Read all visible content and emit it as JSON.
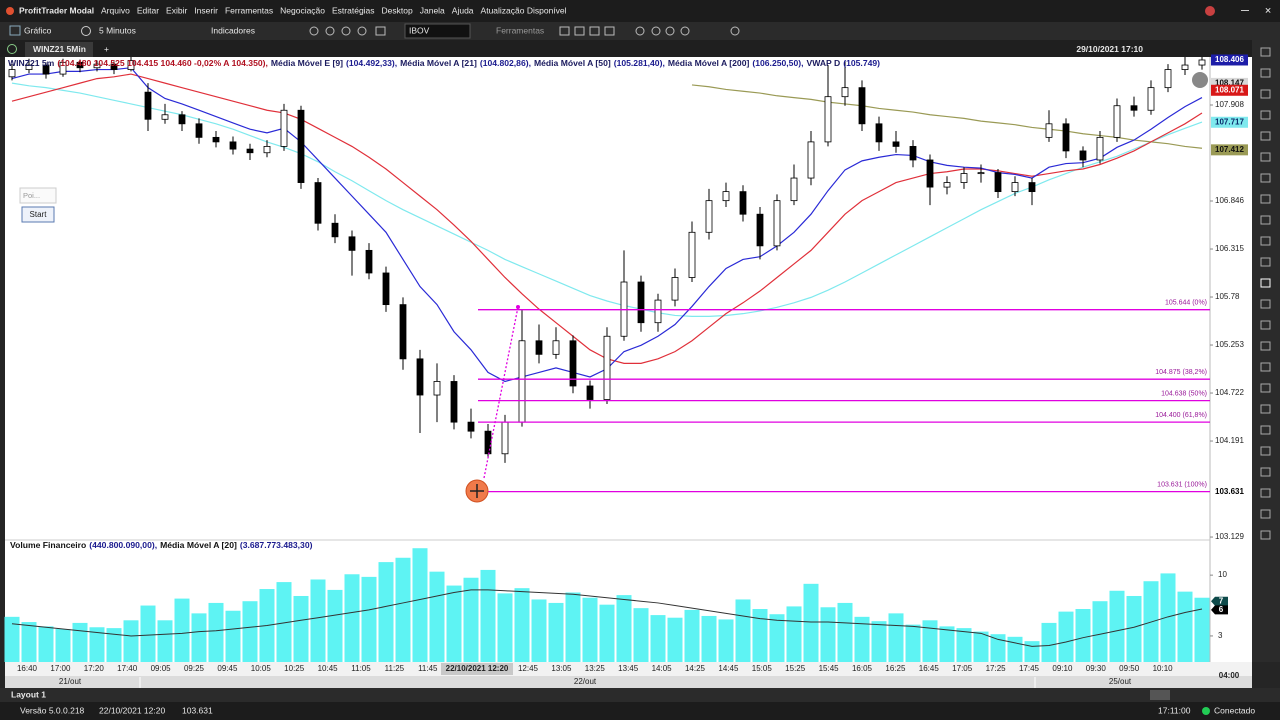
{
  "app": {
    "title": "ProfitTrader Modal",
    "menu": [
      "Arquivo",
      "Editar",
      "Exibir",
      "Inserir",
      "Ferramentas",
      "Negociação",
      "Estratégias",
      "Desktop",
      "Janela",
      "Ajuda",
      "Atualização Disponível"
    ],
    "toolbar": {
      "chart": "Gráfico",
      "timeframe": "5 Minutos",
      "indicators": "Indicadores",
      "symbol": "IBOV",
      "tools": "Ferramentas"
    },
    "tab": "WINZ21 5Min",
    "datetime": "29/10/2021 17:10",
    "side_panel": {
      "input": "Poi...",
      "button": "Start"
    },
    "layout_tab": "Layout 1",
    "status": {
      "version": "Versão 5.0.0.218",
      "datetime": "22/10/2021 12:20",
      "price": "103.631",
      "time": "17:11:00",
      "connection": "Conectado"
    }
  },
  "chart_data": [
    {
      "type": "candlestick",
      "symbol": "WINZ21 5m",
      "symbol_quote": "(104.480 104.525 104.415 104.460 -0,02% A 104.350),",
      "up_color": "#ffffff",
      "down_color": "#000000",
      "candles": [
        [
          108.22,
          108.36,
          108.18,
          108.3
        ],
        [
          108.3,
          108.42,
          108.26,
          108.35
        ],
        [
          108.35,
          108.38,
          108.2,
          108.25
        ],
        [
          108.25,
          108.42,
          108.22,
          108.38
        ],
        [
          108.38,
          108.41,
          108.27,
          108.32
        ],
        [
          108.32,
          108.4,
          108.28,
          108.36
        ],
        [
          108.36,
          108.39,
          108.25,
          108.3
        ],
        [
          108.3,
          108.44,
          108.28,
          108.4
        ],
        [
          108.05,
          108.15,
          107.62,
          107.75
        ],
        [
          107.75,
          107.92,
          107.7,
          107.8
        ],
        [
          107.8,
          107.84,
          107.62,
          107.7
        ],
        [
          107.7,
          107.76,
          107.48,
          107.55
        ],
        [
          107.55,
          107.62,
          107.44,
          107.5
        ],
        [
          107.5,
          107.56,
          107.36,
          107.42
        ],
        [
          107.42,
          107.48,
          107.3,
          107.38
        ],
        [
          107.38,
          107.52,
          107.33,
          107.45
        ],
        [
          107.45,
          107.92,
          107.4,
          107.85
        ],
        [
          107.85,
          107.9,
          106.98,
          107.05
        ],
        [
          107.05,
          107.1,
          106.52,
          106.6
        ],
        [
          106.6,
          106.7,
          106.38,
          106.45
        ],
        [
          106.45,
          106.52,
          106.02,
          106.3
        ],
        [
          106.3,
          106.38,
          105.98,
          106.05
        ],
        [
          106.05,
          106.12,
          105.62,
          105.7
        ],
        [
          105.7,
          105.78,
          104.98,
          105.1
        ],
        [
          105.1,
          105.2,
          104.28,
          104.7
        ],
        [
          104.7,
          105.05,
          104.4,
          104.85
        ],
        [
          104.85,
          104.92,
          104.32,
          104.4
        ],
        [
          104.4,
          104.55,
          104.22,
          104.3
        ],
        [
          104.3,
          104.38,
          104.0,
          104.05
        ],
        [
          104.05,
          104.48,
          103.95,
          104.4
        ],
        [
          104.4,
          105.644,
          104.35,
          105.3
        ],
        [
          105.3,
          105.48,
          105.05,
          105.15
        ],
        [
          105.15,
          105.45,
          105.1,
          105.3
        ],
        [
          105.3,
          105.36,
          104.72,
          104.8
        ],
        [
          104.8,
          104.86,
          104.55,
          104.65
        ],
        [
          104.65,
          105.45,
          104.6,
          105.35
        ],
        [
          105.35,
          106.3,
          105.3,
          105.95
        ],
        [
          105.95,
          106.02,
          105.4,
          105.5
        ],
        [
          105.5,
          105.82,
          105.4,
          105.75
        ],
        [
          105.75,
          106.1,
          105.68,
          106.0
        ],
        [
          106.0,
          106.62,
          105.95,
          106.5
        ],
        [
          106.5,
          106.98,
          106.42,
          106.85
        ],
        [
          106.85,
          107.05,
          106.78,
          106.95
        ],
        [
          106.95,
          107.02,
          106.62,
          106.7
        ],
        [
          106.7,
          106.78,
          106.2,
          106.35
        ],
        [
          106.35,
          106.92,
          106.3,
          106.85
        ],
        [
          106.85,
          107.25,
          106.8,
          107.1
        ],
        [
          107.1,
          107.62,
          107.02,
          107.5
        ],
        [
          107.5,
          108.35,
          107.45,
          108.0
        ],
        [
          108.0,
          108.4,
          107.9,
          108.1
        ],
        [
          108.1,
          108.18,
          107.62,
          107.7
        ],
        [
          107.7,
          107.78,
          107.4,
          107.5
        ],
        [
          107.5,
          107.62,
          107.38,
          107.45
        ],
        [
          107.45,
          107.52,
          107.22,
          107.3
        ],
        [
          107.3,
          107.36,
          106.8,
          107.0
        ],
        [
          107.0,
          107.12,
          106.92,
          107.05
        ],
        [
          107.05,
          107.22,
          106.98,
          107.15
        ],
        [
          107.15,
          107.25,
          107.05,
          107.16
        ],
        [
          107.16,
          107.2,
          106.88,
          106.95
        ],
        [
          106.95,
          107.12,
          106.9,
          107.05
        ],
        [
          107.05,
          107.1,
          106.8,
          106.95
        ],
        [
          107.55,
          107.85,
          107.5,
          107.7
        ],
        [
          107.7,
          107.76,
          107.32,
          107.4
        ],
        [
          107.4,
          107.45,
          107.22,
          107.3
        ],
        [
          107.3,
          107.62,
          107.26,
          107.55
        ],
        [
          107.55,
          107.98,
          107.5,
          107.9
        ],
        [
          107.9,
          108.0,
          107.78,
          107.85
        ],
        [
          107.85,
          108.18,
          107.8,
          108.1
        ],
        [
          108.1,
          108.36,
          108.05,
          108.3
        ],
        [
          108.3,
          108.44,
          108.24,
          108.35
        ],
        [
          108.35,
          108.44,
          108.3,
          108.406
        ]
      ],
      "series": [
        {
          "name": "Média Móvel E [9]",
          "legend_value": "(104.492,33),",
          "color": "#2a2ad6",
          "values": [
            108.2,
            108.25,
            108.25,
            108.28,
            108.28,
            108.3,
            108.3,
            108.32,
            108.1,
            107.98,
            107.92,
            107.85,
            107.78,
            107.71,
            107.64,
            107.6,
            107.65,
            107.5,
            107.3,
            107.1,
            106.9,
            106.7,
            106.5,
            106.2,
            105.9,
            105.7,
            105.4,
            105.2,
            104.95,
            104.85,
            104.9,
            104.95,
            105.0,
            104.95,
            104.9,
            104.99,
            105.18,
            105.25,
            105.35,
            105.48,
            105.68,
            105.9,
            106.1,
            106.2,
            106.23,
            106.35,
            106.5,
            106.7,
            106.96,
            107.19,
            107.29,
            107.33,
            107.36,
            107.35,
            107.28,
            107.24,
            107.22,
            107.21,
            107.16,
            107.14,
            107.1,
            107.22,
            107.26,
            107.27,
            107.32,
            107.44,
            107.52,
            107.64,
            107.77,
            107.89,
            107.99
          ]
        },
        {
          "name": "Média Móvel A [21]",
          "legend_value": "(104.802,86),",
          "color": "#e0303a",
          "values": [
            107.95,
            108.0,
            108.05,
            108.1,
            108.15,
            108.2,
            108.22,
            108.25,
            108.2,
            108.15,
            108.1,
            108.05,
            108.0,
            107.95,
            107.9,
            107.85,
            107.82,
            107.75,
            107.65,
            107.55,
            107.45,
            107.33,
            107.2,
            107.05,
            106.9,
            106.75,
            106.58,
            106.4,
            106.2,
            106.0,
            105.82,
            105.65,
            105.5,
            105.35,
            105.2,
            105.1,
            105.05,
            105.05,
            105.1,
            105.18,
            105.3,
            105.45,
            105.6,
            105.72,
            105.85,
            106.0,
            106.15,
            106.3,
            106.5,
            106.7,
            106.85,
            106.95,
            107.05,
            107.1,
            107.15,
            107.17,
            107.2,
            107.2,
            107.18,
            107.15,
            107.12,
            107.15,
            107.18,
            107.2,
            107.25,
            107.32,
            107.4,
            107.5,
            107.6,
            107.7,
            107.82
          ]
        },
        {
          "name": "Média Móvel A [50]",
          "legend_value": "(105.281,40),",
          "color": "#7fe9ee",
          "values": [
            108.15,
            108.12,
            108.1,
            108.07,
            108.04,
            108.0,
            107.96,
            107.92,
            107.88,
            107.84,
            107.8,
            107.75,
            107.7,
            107.64,
            107.57,
            107.5,
            107.44,
            107.37,
            107.28,
            107.17,
            107.07,
            106.96,
            106.85,
            106.75,
            106.66,
            106.57,
            106.48,
            106.39,
            106.3,
            106.2,
            106.12,
            106.04,
            105.96,
            105.88,
            105.8,
            105.74,
            105.69,
            105.65,
            105.61,
            105.58,
            105.57,
            105.57,
            105.58,
            105.6,
            105.63,
            105.67,
            105.72,
            105.78,
            105.86,
            105.95,
            106.05,
            106.15,
            106.25,
            106.35,
            106.45,
            106.55,
            106.65,
            106.75,
            106.84,
            106.93,
            107.0,
            107.08,
            107.15,
            107.22,
            107.28,
            107.34,
            107.42,
            107.5,
            107.58,
            107.65,
            107.72
          ]
        },
        {
          "name": "Média Móvel A [200]",
          "legend_value": "(106.250,50),",
          "color": "#9a9a55",
          "values": [
            null,
            null,
            null,
            null,
            null,
            null,
            null,
            null,
            null,
            null,
            null,
            null,
            null,
            null,
            null,
            null,
            null,
            null,
            null,
            null,
            null,
            null,
            null,
            null,
            null,
            null,
            null,
            null,
            null,
            null,
            null,
            null,
            null,
            null,
            null,
            null,
            null,
            null,
            null,
            null,
            108.13,
            108.11,
            108.08,
            108.06,
            108.04,
            108.01,
            107.99,
            107.97,
            107.94,
            107.92,
            107.9,
            107.87,
            107.85,
            107.83,
            107.8,
            107.78,
            107.76,
            107.73,
            107.71,
            107.69,
            107.66,
            107.64,
            107.62,
            107.59,
            107.57,
            107.55,
            107.52,
            107.5,
            107.48,
            107.45,
            107.43
          ]
        }
      ],
      "legend_extra": {
        "name": "VWAP D",
        "legend_value": "(105.749)"
      },
      "ylim": [
        103.041,
        108.439
      ],
      "yticks": [
        103.129,
        104.191,
        104.722,
        105.253,
        {
          "value": 105.784,
          "label": "105.78"
        },
        106.315,
        106.846,
        107.908
      ],
      "price_tags": [
        {
          "value": 108.406,
          "color": "#1d1da8",
          "text_color": "#ffffff"
        },
        {
          "value": 108.147,
          "color": "#d8d8d8",
          "text_color": "#111111"
        },
        {
          "value": 108.071,
          "color": "#d81818",
          "text_color": "#ffffff"
        },
        {
          "value": 107.717,
          "color": "#7fe9ee",
          "text_color": "#0a2a6a"
        },
        {
          "value": 107.412,
          "color": "#9a9a55",
          "text_color": "#111111"
        },
        {
          "value": 103.631,
          "color": "#ffffff",
          "text_color": "#000000"
        }
      ],
      "fibonacci_color": "#e000e0",
      "fibonacci": [
        {
          "value": 105.644,
          "label": "105.644 (0%)"
        },
        {
          "value": 104.875,
          "label": "104.875 (38,2%)"
        },
        {
          "value": 104.638,
          "label": "104.638 (50%)"
        },
        {
          "value": 104.4,
          "label": "104.400 (61,8%)"
        },
        {
          "value": 103.631,
          "label": "103.631 (100%)"
        }
      ],
      "x_labels": [
        "16:40",
        "17:00",
        "17:20",
        "17:40",
        "09:05",
        "09:25",
        "09:45",
        "10:05",
        "10:25",
        "10:45",
        "11:05",
        "11:25",
        "11:45",
        null,
        null,
        "12:45",
        "13:05",
        "13:25",
        "13:45",
        "14:05",
        "14:25",
        "14:45",
        "15:05",
        "15:25",
        "15:45",
        "16:05",
        "16:25",
        "16:45",
        "17:05",
        "17:25",
        "17:45",
        "09:10",
        "09:30",
        "09:50",
        "10:10"
      ],
      "crosshair_label": "22/10/2021 12:20",
      "date_labels": [
        "21/out",
        "22/out",
        "25/out"
      ],
      "axis_corner": "04:00"
    },
    {
      "type": "bar",
      "series": [
        {
          "name": "Volume Financeiro",
          "legend_value": "(440.800.090,00),",
          "color": "#5ef3f3",
          "values": [
            5.2,
            4.6,
            4.1,
            3.8,
            4.5,
            4.0,
            3.9,
            4.8,
            6.5,
            4.8,
            7.3,
            5.6,
            6.8,
            5.9,
            7.0,
            8.4,
            9.2,
            7.6,
            9.5,
            8.3,
            10.1,
            9.8,
            11.5,
            12.0,
            13.1,
            10.4,
            8.8,
            9.7,
            10.6,
            7.9,
            8.5,
            7.2,
            6.8,
            8.0,
            7.4,
            6.6,
            7.7,
            6.2,
            5.4,
            5.1,
            6.0,
            5.3,
            4.9,
            7.2,
            6.1,
            5.5,
            6.4,
            9.0,
            6.3,
            6.8,
            5.2,
            4.7,
            5.6,
            4.3,
            4.8,
            4.1,
            3.9,
            3.5,
            3.2,
            2.9,
            2.4,
            4.5,
            5.8,
            6.1,
            7.0,
            8.2,
            7.6,
            9.3,
            10.2,
            8.1,
            7.4
          ]
        },
        {
          "name": "Média Móvel A [20]",
          "legend_value": "(3.687.773.483,30)",
          "color": "#333333",
          "values": [
            4.4,
            4.2,
            4.0,
            3.8,
            3.6,
            3.4,
            3.2,
            3.0,
            3.1,
            3.2,
            3.3,
            3.5,
            3.6,
            3.8,
            4.0,
            4.2,
            4.5,
            4.8,
            5.1,
            5.4,
            5.7,
            6.0,
            6.4,
            6.8,
            7.2,
            7.6,
            8.0,
            8.3,
            8.3,
            8.2,
            8.1,
            8.0,
            7.9,
            7.8,
            7.6,
            7.4,
            7.2,
            7.0,
            6.8,
            6.5,
            6.2,
            5.9,
            5.6,
            5.3,
            5.0,
            4.8,
            4.7,
            4.6,
            4.6,
            4.5,
            4.4,
            4.3,
            4.2,
            4.1,
            3.9,
            3.7,
            3.5,
            3.3,
            2.6,
            2.2,
            1.8,
            1.9,
            2.3,
            2.8,
            3.2,
            3.6,
            4.0,
            4.6,
            5.2,
            5.7,
            6.1
          ]
        }
      ],
      "ylim": [
        0,
        13.7
      ],
      "yticks": [
        3,
        10
      ],
      "value_tags": [
        7,
        6
      ]
    }
  ]
}
